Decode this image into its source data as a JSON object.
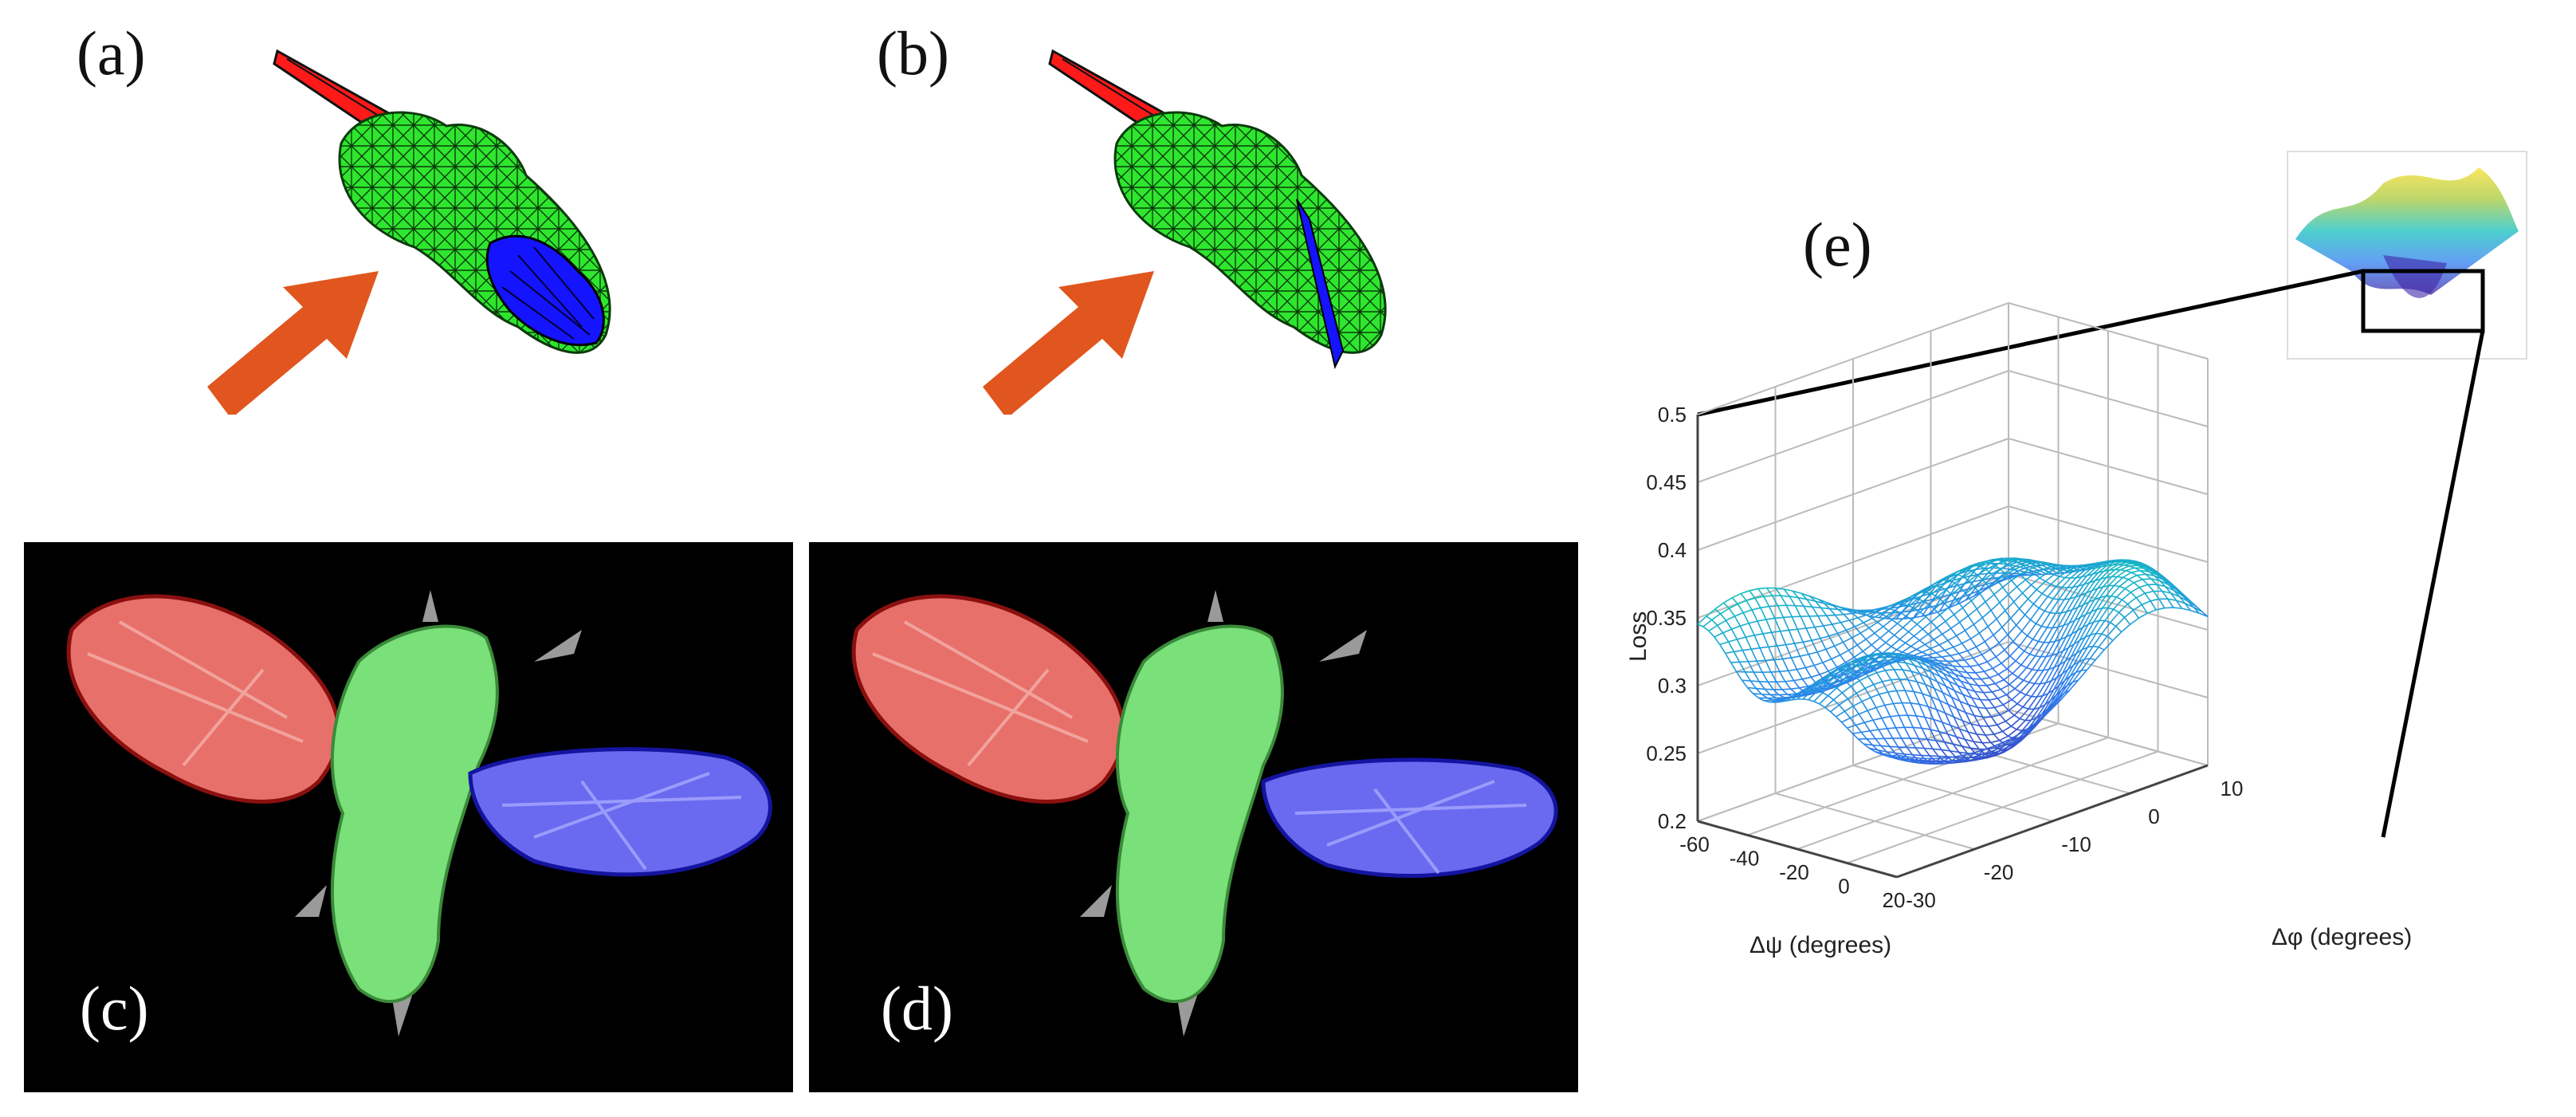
{
  "panels": {
    "a": "(a)",
    "b": "(b)",
    "c": "(c)",
    "d": "(d)",
    "e": "(e)"
  },
  "colors": {
    "body": "#2ee62e",
    "left_wing": "#ff1a1a",
    "right_wing": "#1414ff",
    "arrow": "#e0561e",
    "seg_red": "#e8706a",
    "seg_green": "#7ae07a",
    "seg_blue": "#6a6af0"
  },
  "chart_data": {
    "type": "surface",
    "zlabel": "Loss",
    "xlabel": "Δψ (degrees)",
    "ylabel": "Δφ (degrees)",
    "z_ticks": [
      "0.2",
      "0.25",
      "0.3",
      "0.35",
      "0.4",
      "0.45",
      "0.5"
    ],
    "x_ticks": [
      "-60",
      "-40",
      "-20",
      "0",
      "20"
    ],
    "y_ticks": [
      "-30",
      "-20",
      "-10",
      "0",
      "10"
    ],
    "zlim": [
      0.2,
      0.5
    ],
    "xlim": [
      -60,
      20
    ],
    "ylim": [
      -30,
      10
    ],
    "grid": true,
    "colormap": "parula"
  }
}
